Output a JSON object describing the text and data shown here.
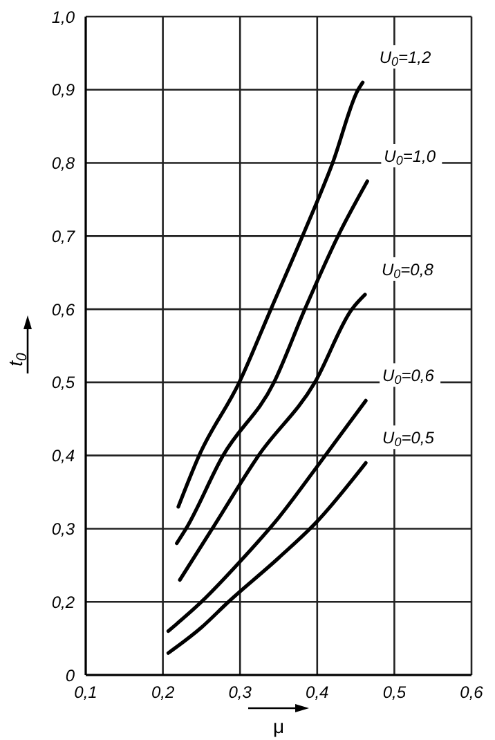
{
  "chart_data": {
    "type": "line",
    "xlabel": "μ",
    "ylabel": "t$_{0}$",
    "xlim": [
      0.1,
      0.6
    ],
    "xticks": [
      {
        "value": 0.1,
        "label": "0,1"
      },
      {
        "value": 0.2,
        "label": "0,2"
      },
      {
        "value": 0.3,
        "label": "0,3"
      },
      {
        "value": 0.4,
        "label": "0,4"
      },
      {
        "value": 0.5,
        "label": "0,5"
      },
      {
        "value": 0.6,
        "label": "0,6"
      }
    ],
    "ylim": [
      0.1,
      1.0
    ],
    "yticks": [
      {
        "value": 0.1,
        "label": "0"
      },
      {
        "value": 0.2,
        "label": "0,2"
      },
      {
        "value": 0.3,
        "label": "0,3"
      },
      {
        "value": 0.4,
        "label": "0,4"
      },
      {
        "value": 0.5,
        "label": "0,5"
      },
      {
        "value": 0.6,
        "label": "0,6"
      },
      {
        "value": 0.7,
        "label": "0,7"
      },
      {
        "value": 0.8,
        "label": "0,8"
      },
      {
        "value": 0.9,
        "label": "0,9"
      },
      {
        "value": 1.0,
        "label": "1,0"
      }
    ],
    "grid": true,
    "marker": "none",
    "line_style": "solid",
    "legend": false,
    "series": [
      {
        "name": "U$_{0}$=1,2",
        "color": "#000000",
        "x": [
          0.22,
          0.247,
          0.299,
          0.34,
          0.381,
          0.42,
          0.453,
          0.459
        ],
        "values": [
          0.33,
          0.4,
          0.5,
          0.6,
          0.7,
          0.8,
          0.9,
          0.91
        ]
      },
      {
        "name": "U$_{0}$=1,0",
        "color": "#000000",
        "x": [
          0.218,
          0.23,
          0.278,
          0.344,
          0.384,
          0.427,
          0.465
        ],
        "values": [
          0.28,
          0.3,
          0.4,
          0.5,
          0.6,
          0.7,
          0.775
        ]
      },
      {
        "name": "U$_{0}$=0,8",
        "color": "#000000",
        "x": [
          0.222,
          0.264,
          0.324,
          0.397,
          0.445,
          0.462
        ],
        "values": [
          0.23,
          0.3,
          0.4,
          0.5,
          0.6,
          0.62
        ]
      },
      {
        "name": "U$_{0}$=0,6",
        "color": "#000000",
        "x": [
          0.207,
          0.25,
          0.3,
          0.35,
          0.4,
          0.463
        ],
        "values": [
          0.16,
          0.2,
          0.255,
          0.315,
          0.385,
          0.475
        ]
      },
      {
        "name": "U$_{0}$=0,5",
        "color": "#000000",
        "x": [
          0.207,
          0.25,
          0.285,
          0.35,
          0.4,
          0.463
        ],
        "values": [
          0.13,
          0.165,
          0.2,
          0.26,
          0.31,
          0.39
        ]
      }
    ]
  }
}
